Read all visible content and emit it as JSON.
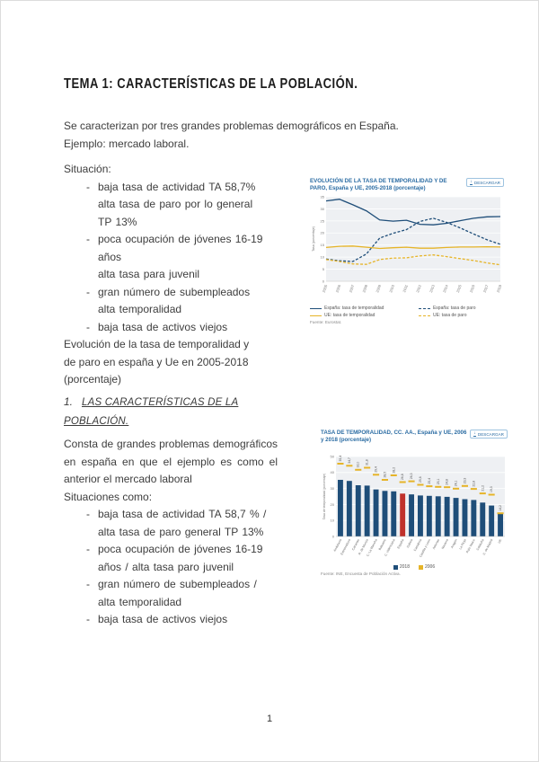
{
  "ui": {
    "download_label": "DESCARGAR",
    "download_icon": "↓"
  },
  "doc": {
    "title": "TEMA 1: CARACTERÍSTICAS DE LA POBLACIÓN.",
    "intro": "Se caracterizan por tres grandes problemas demográficos en España.\nEjemplo: mercado laboral.",
    "page_number": "1",
    "section1": {
      "label": "Situación:",
      "bullets": [
        "baja tasa de actividad TA 58,7%\nalta tasa de paro por lo general\nTP 13%",
        "poca ocupación de jóvenes 16-19\naños\nalta tasa para juvenil",
        "gran número de subempleados\nalta temporalidad",
        "baja tasa de activos viejos"
      ],
      "caption": "Evolución de la tasa de temporalidad y\nde paro en españa y Ue en 2005-2018\n(porcentaje)"
    },
    "section2": {
      "number": "1.",
      "heading": "LAS CARACTERÍSTICAS DE LA POBLACIÓN.",
      "paragraph": "Consta de grandes problemas demográficos en españa en que el ejemplo es como el anterior el mercado laboral",
      "subheading": "Situaciones como:",
      "bullets": [
        "baja tasa de actividad TA 58,7 % /\nalta tasa de paro general TP 13%",
        "poca ocupación de jóvenes 16-19\naños / alta tasa paro juvenil",
        "gran número de subempleados /\nalta temporalidad",
        "baja tasa de activos viejos"
      ]
    }
  },
  "chart_data": [
    {
      "type": "line",
      "title": "EVOLUCIÓN DE LA TASA DE TEMPORALIDAD Y DE PARO, España y UE, 2005-2018 (porcentaje)",
      "ylabel": "Tasa (porcentaje)",
      "x": [
        2005,
        2006,
        2007,
        2008,
        2009,
        2010,
        2011,
        2012,
        2013,
        2014,
        2015,
        2016,
        2017,
        2018
      ],
      "ylim": [
        0,
        35
      ],
      "yticks": [
        0,
        5,
        10,
        15,
        20,
        25,
        30,
        35
      ],
      "grid": true,
      "legend_position": "bottom",
      "series": [
        {
          "name": "España: tasa de temporalidad",
          "color": "#1f4e79",
          "dash": "solid",
          "values": [
            33.3,
            34.0,
            31.7,
            29.2,
            25.4,
            24.9,
            25.3,
            23.6,
            23.4,
            24.0,
            25.1,
            26.1,
            26.7,
            26.8
          ]
        },
        {
          "name": "España: tasa de paro",
          "color": "#1f4e79",
          "dash": "dashed",
          "values": [
            9.2,
            8.5,
            8.2,
            11.3,
            17.9,
            19.9,
            21.4,
            24.8,
            26.1,
            24.4,
            22.1,
            19.6,
            17.2,
            15.3
          ]
        },
        {
          "name": "UE: tasa de temporalidad",
          "color": "#e6b428",
          "dash": "solid",
          "values": [
            14.0,
            14.5,
            14.6,
            14.1,
            13.6,
            13.9,
            14.1,
            13.7,
            13.7,
            14.0,
            14.2,
            14.2,
            14.3,
            14.2
          ]
        },
        {
          "name": "UE: tasa de paro",
          "color": "#e6b428",
          "dash": "dashed",
          "values": [
            9.0,
            8.2,
            7.2,
            7.0,
            9.0,
            9.6,
            9.7,
            10.5,
            10.9,
            10.2,
            9.4,
            8.6,
            7.6,
            6.8
          ]
        }
      ],
      "source": "Fuente: Eurostat."
    },
    {
      "type": "bar",
      "title": "TASA DE TEMPORALIDAD, CC. AA., España y UE, 2006 y 2018 (porcentaje)",
      "ylabel": "Tasa de temporalidad (porcentaje)",
      "categories": [
        "Andalucía",
        "Extremadura",
        "Canarias",
        "R. de Murcia",
        "C.-La Mancha",
        "Baleares",
        "C. Valenciana",
        "España",
        "Galicia",
        "Cantabria",
        "Castilla y León",
        "Asturias",
        "Navarra",
        "Aragón",
        "La Rioja",
        "País Vasco",
        "Cataluña",
        "C. de Madrid",
        "UE"
      ],
      "ylim": [
        0,
        50
      ],
      "yticks": [
        0,
        10,
        20,
        30,
        40,
        50
      ],
      "grid": true,
      "legend_position": "bottom",
      "bar_color": "#1f4e79",
      "highlight_category": "España",
      "highlight_color": "#c0312b",
      "marker_color": "#e6b428",
      "series": [
        {
          "name": "2018",
          "values": [
            35.4,
            34.7,
            32.0,
            31.8,
            29.4,
            28.5,
            28.2,
            26.8,
            26.3,
            25.6,
            25.4,
            25.1,
            24.8,
            24.1,
            23.3,
            22.8,
            21.2,
            19.3,
            14.2
          ]
        },
        {
          "name": "2006",
          "values": [
            45.5,
            44.2,
            41.7,
            43.0,
            38.6,
            35.4,
            38.2,
            34.0,
            34.5,
            32.3,
            31.4,
            31.0,
            30.8,
            29.9,
            31.6,
            29.7,
            26.9,
            26.1,
            14.5
          ]
        }
      ],
      "source": "Fuente: INE, Encuesta de Población Activa."
    }
  ]
}
